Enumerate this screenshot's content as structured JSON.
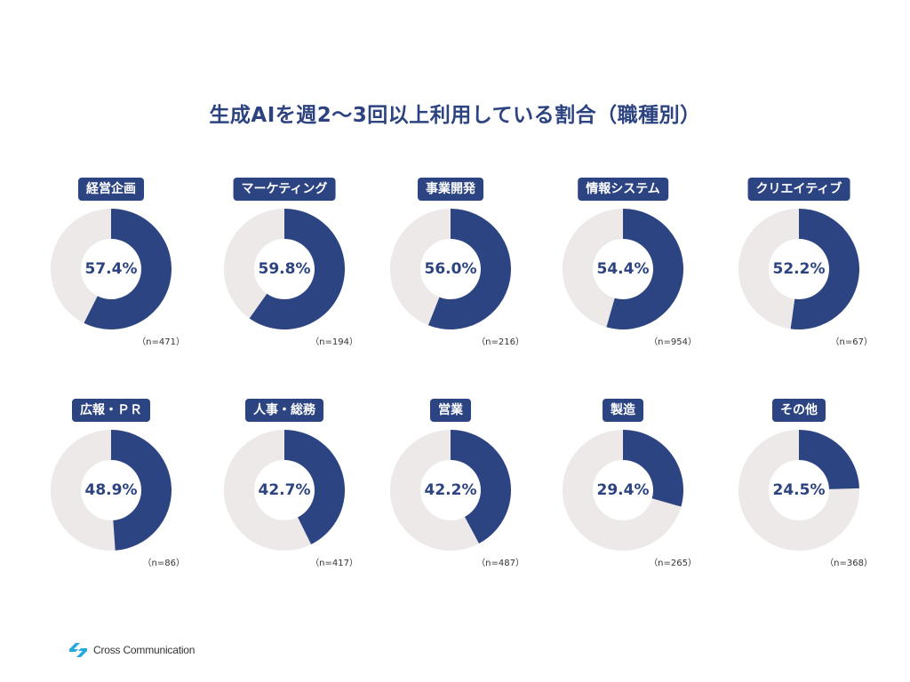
{
  "title": "生成AIを週2〜3回以上利用している割合（職種別）",
  "colors": {
    "filled": "#2d4483",
    "remaining": "#ece9e8",
    "title": "#2c4380"
  },
  "chart_data": {
    "type": "pie",
    "title": "生成AIを週2〜3回以上利用している割合（職種別）",
    "style": "donut",
    "items": [
      {
        "category": "経営企画",
        "value": 57.4,
        "value_label": "57.4%",
        "n_label": "（n=471）"
      },
      {
        "category": "マーケティング",
        "value": 59.8,
        "value_label": "59.8%",
        "n_label": "（n=194）"
      },
      {
        "category": "事業開発",
        "value": 56.0,
        "value_label": "56.0%",
        "n_label": "（n=216）"
      },
      {
        "category": "情報システム",
        "value": 54.4,
        "value_label": "54.4%",
        "n_label": "（n=954）"
      },
      {
        "category": "クリエイティブ",
        "value": 52.2,
        "value_label": "52.2%",
        "n_label": "（n=67）"
      },
      {
        "category": "広報・ＰＲ",
        "value": 48.9,
        "value_label": "48.9%",
        "n_label": "（n=86）"
      },
      {
        "category": "人事・総務",
        "value": 42.7,
        "value_label": "42.7%",
        "n_label": "（n=417）"
      },
      {
        "category": "営業",
        "value": 42.2,
        "value_label": "42.2%",
        "n_label": "（n=487）"
      },
      {
        "category": "製造",
        "value": 29.4,
        "value_label": "29.4%",
        "n_label": "（n=265）"
      },
      {
        "category": "その他",
        "value": 24.5,
        "value_label": "24.5%",
        "n_label": "（n=368）"
      }
    ]
  },
  "logo": {
    "text": "Cross Communication",
    "icon": "cross-communication-logo-icon"
  }
}
